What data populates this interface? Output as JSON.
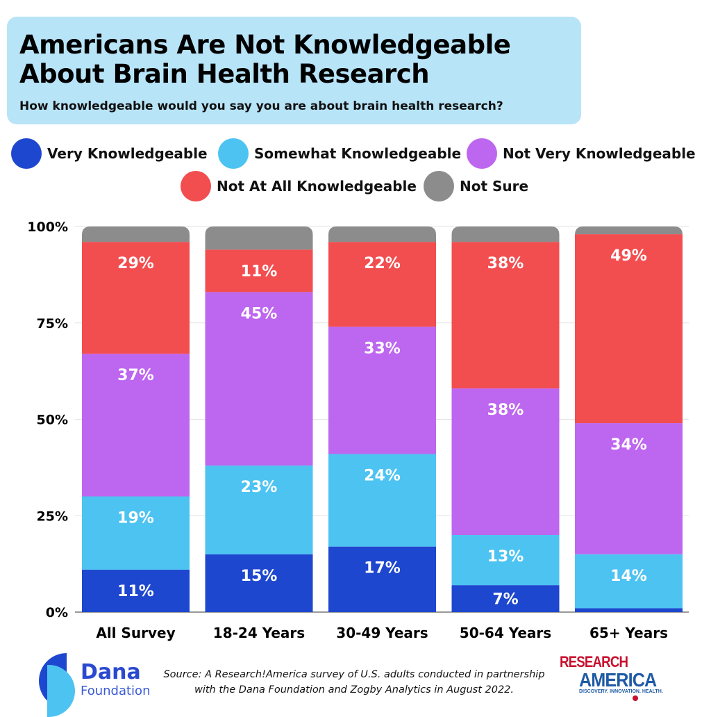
{
  "header": {
    "title_line1": "Americans Are Not Knowledgeable",
    "title_line2": "About Brain Health Research",
    "subtitle": "How knowledgeable would you say you are about brain health research?"
  },
  "chart_data": {
    "type": "bar",
    "stacked": true,
    "title": "Americans Are Not Knowledgeable About Brain Health Research",
    "subtitle": "How knowledgeable would you say you are about brain health research?",
    "categories": [
      "All Survey",
      "18-24 Years",
      "30-49 Years",
      "50-64 Years",
      "65+ Years"
    ],
    "ylim": [
      0,
      100
    ],
    "yticks": [
      "0%",
      "25%",
      "50%",
      "75%",
      "100%"
    ],
    "ytick_values": [
      0,
      25,
      50,
      75,
      100
    ],
    "grid": true,
    "legend_placement": "top",
    "series": [
      {
        "name": "Very Knowledgeable",
        "color": "#1e47cf",
        "values": [
          11,
          15,
          17,
          7,
          1
        ],
        "labels": [
          "11%",
          "15%",
          "17%",
          "7%",
          null
        ]
      },
      {
        "name": "Somewhat Knowledgeable",
        "color": "#4dc3f2",
        "values": [
          19,
          23,
          24,
          13,
          14
        ],
        "labels": [
          "19%",
          "23%",
          "24%",
          "13%",
          "14%"
        ]
      },
      {
        "name": "Not Very Knowledgeable",
        "color": "#bd66f0",
        "values": [
          37,
          45,
          33,
          38,
          34
        ],
        "labels": [
          "37%",
          "45%",
          "33%",
          "38%",
          "34%"
        ]
      },
      {
        "name": "Not At All Knowledgeable",
        "color": "#f24d4f",
        "values": [
          29,
          11,
          22,
          38,
          49
        ],
        "labels": [
          "29%",
          "11%",
          "22%",
          "38%",
          "49%"
        ]
      },
      {
        "name": "Not Sure",
        "color": "#8c8c8c",
        "values": [
          4,
          6,
          4,
          4,
          2
        ],
        "labels": [
          null,
          null,
          null,
          null,
          null
        ]
      }
    ]
  },
  "footer": {
    "source_line1": "Source: A Research!America survey of U.S. adults conducted in partnership",
    "source_line2": "with the Dana Foundation and Zogby Analytics in August 2022.",
    "dana_logo": "Dana Foundation",
    "ra_logo": "RESEARCH AMERICA DISCOVERY. INNOVATION. HEALTH."
  }
}
